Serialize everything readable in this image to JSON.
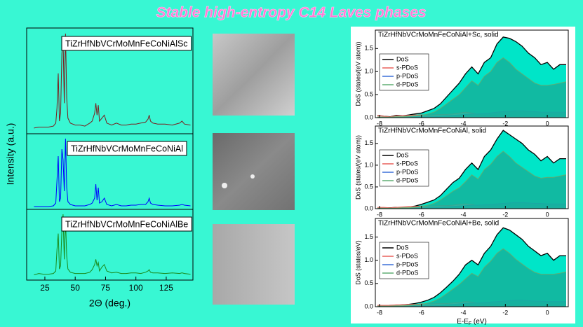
{
  "header": {
    "title": "Stable high-entropy C14 Laves phases"
  },
  "chart_data": [
    {
      "type": "line",
      "xlabel": "2Θ (deg.)",
      "ylabel": "Intensity (a.u.)",
      "xlim": [
        10,
        147
      ],
      "xticks": [
        25,
        50,
        75,
        100,
        125
      ],
      "ylim": [
        0,
        100
      ],
      "x": [
        16,
        20,
        24,
        28,
        32,
        34,
        35,
        36,
        37,
        38,
        39,
        40,
        41,
        42,
        43,
        44,
        46,
        50,
        54,
        58,
        62,
        64,
        66,
        67,
        68,
        69,
        70,
        72,
        74,
        76,
        80,
        84,
        88,
        92,
        96,
        100,
        104,
        108,
        110,
        111,
        112,
        114,
        118,
        124,
        130,
        136,
        138,
        140,
        145
      ],
      "series": [
        {
          "name": "TiZrHfNbVCrMoMnFeCoNiAlSc",
          "color": "#7a1f1f",
          "values": [
            5,
            6,
            6,
            6,
            7,
            10,
            25,
            60,
            12,
            20,
            80,
            95,
            30,
            100,
            35,
            15,
            10,
            8,
            8,
            7,
            10,
            12,
            20,
            30,
            18,
            28,
            12,
            15,
            18,
            10,
            8,
            10,
            8,
            8,
            9,
            9,
            10,
            11,
            14,
            18,
            12,
            10,
            9,
            9,
            8,
            10,
            12,
            9,
            8
          ]
        },
        {
          "name": "TiZrHfNbVCrMoMnFeCoNiAl",
          "color": "#0000ff",
          "values": [
            3,
            3,
            3,
            3,
            4,
            8,
            40,
            75,
            10,
            15,
            85,
            70,
            25,
            100,
            30,
            10,
            6,
            4,
            4,
            4,
            6,
            8,
            15,
            35,
            12,
            30,
            8,
            10,
            15,
            6,
            4,
            6,
            4,
            4,
            5,
            5,
            6,
            6,
            10,
            15,
            8,
            6,
            5,
            4,
            4,
            5,
            6,
            5,
            4
          ]
        },
        {
          "name": "TiZrHfNbVCrMoMnFeCoNiAlBe",
          "color": "#1a8a1a",
          "values": [
            6,
            8,
            7,
            7,
            8,
            12,
            45,
            70,
            15,
            20,
            75,
            100,
            30,
            90,
            35,
            15,
            10,
            8,
            8,
            8,
            10,
            14,
            22,
            30,
            20,
            25,
            12,
            18,
            22,
            12,
            9,
            10,
            8,
            8,
            9,
            9,
            8,
            10,
            12,
            14,
            10,
            9,
            9,
            8,
            9,
            8,
            9,
            8,
            7
          ]
        }
      ]
    },
    {
      "type": "area",
      "title": "TiZrHfNbVCrMoMnFeCoNiAl+Sc, solid",
      "ylabel": "DoS (states/(eV atom))",
      "xlim": [
        -8.2,
        1
      ],
      "xticks": [
        -8,
        -6,
        -4,
        -2,
        0
      ],
      "ylim": [
        0,
        1.9
      ],
      "yticks": [
        {
          "value": 0,
          "label": "0.0"
        },
        0.5,
        {
          "value": 1,
          "label": "1.0"
        },
        1.5
      ],
      "x": [
        -8.1,
        -7.8,
        -7.5,
        -7.2,
        -6.9,
        -6.6,
        -6.3,
        -6.0,
        -5.7,
        -5.4,
        -5.1,
        -4.8,
        -4.5,
        -4.2,
        -3.9,
        -3.6,
        -3.3,
        -3.0,
        -2.7,
        -2.4,
        -2.1,
        -1.8,
        -1.5,
        -1.2,
        -0.9,
        -0.6,
        -0.3,
        0.0,
        0.3,
        0.6,
        0.9
      ],
      "series": [
        {
          "name": "DoS",
          "color": "#000000",
          "fill": "#00e5c8",
          "values": [
            0.05,
            0.03,
            0.02,
            0.05,
            0.04,
            0.06,
            0.08,
            0.1,
            0.15,
            0.2,
            0.3,
            0.45,
            0.6,
            0.75,
            0.95,
            1.1,
            0.95,
            1.2,
            1.3,
            1.6,
            1.75,
            1.72,
            1.65,
            1.55,
            1.4,
            1.3,
            1.15,
            1.2,
            1.05,
            1.15,
            1.15
          ]
        },
        {
          "name": "s-PDoS",
          "color": "#e8615a",
          "fill": "#e8b0a0",
          "values": [
            0.05,
            0.03,
            0.02,
            0.04,
            0.04,
            0.05,
            0.06,
            0.06,
            0.06,
            0.06,
            0.07,
            0.07,
            0.08,
            0.1,
            0.12,
            0.1,
            0.07,
            0.05,
            0.04,
            0.04,
            0.03,
            0.03,
            0.03,
            0.03,
            0.03,
            0.03,
            0.03,
            0.03,
            0.03,
            0.03,
            0.03
          ]
        },
        {
          "name": "p-PDoS",
          "color": "#3a6fd8",
          "fill": "#2a9fb0",
          "values": [
            0,
            0,
            0,
            0,
            0,
            0,
            0.01,
            0.01,
            0.02,
            0.02,
            0.03,
            0.04,
            0.05,
            0.06,
            0.07,
            0.08,
            0.08,
            0.09,
            0.1,
            0.12,
            0.13,
            0.14,
            0.15,
            0.15,
            0.14,
            0.13,
            0.12,
            0.12,
            0.12,
            0.12,
            0.12
          ]
        },
        {
          "name": "d-PDoS",
          "color": "#5fae72",
          "fill": "#14b39b",
          "values": [
            0.01,
            0.01,
            0.01,
            0.02,
            0.02,
            0.03,
            0.04,
            0.05,
            0.08,
            0.12,
            0.2,
            0.3,
            0.4,
            0.5,
            0.65,
            0.8,
            0.7,
            0.9,
            1.0,
            1.2,
            1.3,
            1.2,
            1.05,
            0.95,
            0.85,
            0.75,
            0.7,
            0.7,
            0.72,
            0.75,
            0.78
          ]
        }
      ]
    },
    {
      "type": "area",
      "title": "TiZrHfNbVCrMoMnFeCoNiAl, solid",
      "ylabel": "DoS (states/(eV atom))",
      "xlim": [
        -8.2,
        1
      ],
      "xticks": [
        -8,
        -6,
        -4,
        -2,
        0
      ],
      "ylim": [
        0,
        1.9
      ],
      "yticks": [
        {
          "value": 0,
          "label": "0.0"
        },
        0.5,
        {
          "value": 1,
          "label": "1.0"
        },
        1.5
      ],
      "x": [
        -8.1,
        -7.8,
        -7.5,
        -7.2,
        -6.9,
        -6.6,
        -6.3,
        -6.0,
        -5.7,
        -5.4,
        -5.1,
        -4.8,
        -4.5,
        -4.2,
        -3.9,
        -3.6,
        -3.3,
        -3.0,
        -2.7,
        -2.4,
        -2.1,
        -1.8,
        -1.5,
        -1.2,
        -0.9,
        -0.6,
        -0.3,
        0.0,
        0.3,
        0.6,
        0.9
      ],
      "series": [
        {
          "name": "DoS",
          "color": "#000000",
          "fill": "#00e5c8",
          "values": [
            0.02,
            0.02,
            0.02,
            0.03,
            0.03,
            0.04,
            0.06,
            0.1,
            0.15,
            0.2,
            0.3,
            0.45,
            0.6,
            0.7,
            0.9,
            1.05,
            0.9,
            1.2,
            1.35,
            1.6,
            1.8,
            1.7,
            1.6,
            1.5,
            1.35,
            1.25,
            1.1,
            1.2,
            1.05,
            1.15,
            1.15
          ]
        },
        {
          "name": "s-PDoS",
          "color": "#e8615a",
          "fill": "#e8b0a0",
          "values": [
            0.03,
            0.03,
            0.02,
            0.03,
            0.04,
            0.05,
            0.05,
            0.06,
            0.06,
            0.06,
            0.07,
            0.07,
            0.08,
            0.1,
            0.11,
            0.1,
            0.07,
            0.05,
            0.04,
            0.04,
            0.03,
            0.03,
            0.03,
            0.03,
            0.03,
            0.03,
            0.03,
            0.03,
            0.03,
            0.03,
            0.03
          ]
        },
        {
          "name": "p-PDoS",
          "color": "#3a6fd8",
          "fill": "#2a9fb0",
          "values": [
            0,
            0,
            0,
            0,
            0,
            0,
            0.01,
            0.01,
            0.02,
            0.02,
            0.03,
            0.04,
            0.05,
            0.06,
            0.07,
            0.08,
            0.08,
            0.09,
            0.1,
            0.11,
            0.12,
            0.13,
            0.14,
            0.14,
            0.13,
            0.12,
            0.12,
            0.11,
            0.11,
            0.11,
            0.11
          ]
        },
        {
          "name": "d-PDoS",
          "color": "#5fae72",
          "fill": "#14b39b",
          "values": [
            0.01,
            0.01,
            0.01,
            0.01,
            0.02,
            0.02,
            0.03,
            0.05,
            0.08,
            0.12,
            0.2,
            0.3,
            0.4,
            0.48,
            0.62,
            0.78,
            0.68,
            0.9,
            1.02,
            1.2,
            1.32,
            1.2,
            1.05,
            0.95,
            0.85,
            0.75,
            0.7,
            0.72,
            0.72,
            0.75,
            0.78
          ]
        }
      ]
    },
    {
      "type": "area",
      "title": "TiZrHfNbVCrMoMnFeCoNiAl+Be, solid",
      "ylabel": "DoS (states/eV)",
      "xlabel": [
        "E-E",
        "F",
        " (eV)"
      ],
      "xlim": [
        -8.2,
        1
      ],
      "xticks": [
        -8,
        -6,
        -4,
        -2,
        0
      ],
      "ylim": [
        0,
        1.9
      ],
      "yticks": [
        {
          "value": 0,
          "label": "0.0"
        },
        0.5,
        {
          "value": 1,
          "label": "1.0"
        },
        1.5
      ],
      "x": [
        -8.1,
        -7.8,
        -7.5,
        -7.2,
        -6.9,
        -6.6,
        -6.3,
        -6.0,
        -5.7,
        -5.4,
        -5.1,
        -4.8,
        -4.5,
        -4.2,
        -3.9,
        -3.6,
        -3.3,
        -3.0,
        -2.7,
        -2.4,
        -2.1,
        -1.8,
        -1.5,
        -1.2,
        -0.9,
        -0.6,
        -0.3,
        0.0,
        0.3,
        0.6,
        0.9
      ],
      "series": [
        {
          "name": "DoS",
          "color": "#000000",
          "fill": "#00e5c8",
          "values": [
            0.02,
            0.02,
            0.03,
            0.03,
            0.04,
            0.05,
            0.07,
            0.1,
            0.14,
            0.2,
            0.3,
            0.42,
            0.55,
            0.7,
            0.9,
            1.0,
            0.9,
            1.15,
            1.3,
            1.55,
            1.7,
            1.65,
            1.55,
            1.45,
            1.3,
            1.2,
            1.1,
            1.15,
            1.0,
            1.1,
            1.1
          ]
        },
        {
          "name": "s-PDoS",
          "color": "#e8615a",
          "fill": "#e8b0a0",
          "values": [
            0.03,
            0.03,
            0.03,
            0.04,
            0.04,
            0.05,
            0.05,
            0.06,
            0.06,
            0.06,
            0.07,
            0.07,
            0.08,
            0.09,
            0.11,
            0.1,
            0.07,
            0.05,
            0.04,
            0.04,
            0.03,
            0.03,
            0.03,
            0.03,
            0.03,
            0.03,
            0.03,
            0.03,
            0.03,
            0.03,
            0.03
          ]
        },
        {
          "name": "p-PDoS",
          "color": "#3a6fd8",
          "fill": "#2a9fb0",
          "values": [
            0,
            0,
            0,
            0,
            0,
            0,
            0.01,
            0.01,
            0.02,
            0.02,
            0.03,
            0.04,
            0.05,
            0.06,
            0.07,
            0.08,
            0.08,
            0.09,
            0.1,
            0.11,
            0.12,
            0.13,
            0.14,
            0.14,
            0.13,
            0.12,
            0.12,
            0.11,
            0.11,
            0.11,
            0.11
          ]
        },
        {
          "name": "d-PDoS",
          "color": "#5fae72",
          "fill": "#14b39b",
          "values": [
            0.01,
            0.01,
            0.01,
            0.02,
            0.02,
            0.03,
            0.04,
            0.05,
            0.08,
            0.12,
            0.19,
            0.28,
            0.38,
            0.48,
            0.6,
            0.72,
            0.65,
            0.85,
            0.98,
            1.15,
            1.25,
            1.15,
            1.02,
            0.92,
            0.82,
            0.74,
            0.7,
            0.7,
            0.7,
            0.72,
            0.75
          ]
        }
      ]
    }
  ]
}
